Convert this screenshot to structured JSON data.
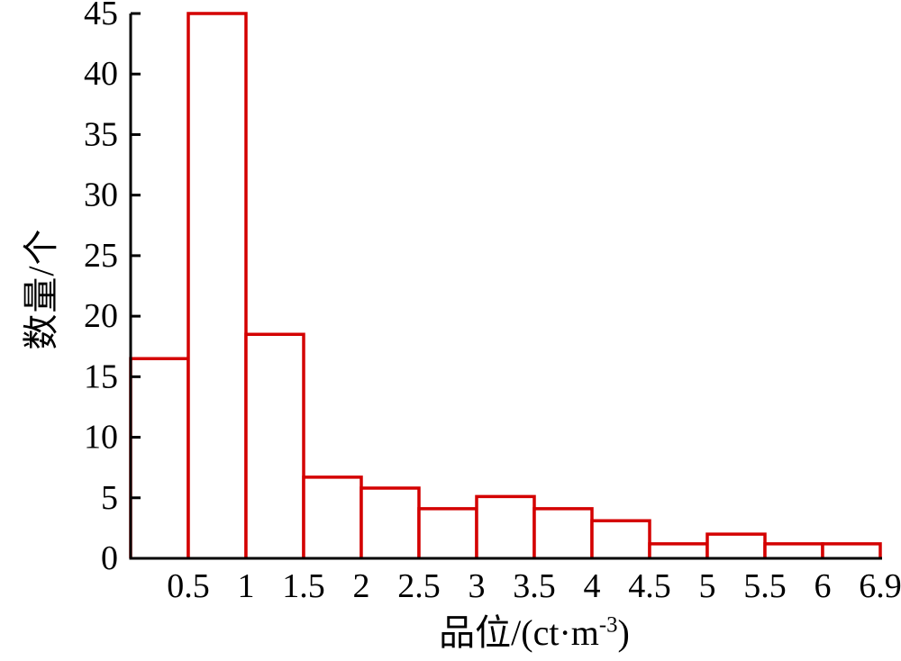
{
  "chart_data": {
    "type": "bar",
    "chart_kind": "histogram",
    "title": "",
    "xlabel": {
      "full": "品位/(ct·m⁻³)",
      "prefix": "品位/(ct·m",
      "superscript": "-3",
      "suffix": ")"
    },
    "ylabel": "数量/个",
    "bin_edges": [
      0,
      0.5,
      1,
      1.5,
      2,
      2.5,
      3,
      3.5,
      4,
      4.5,
      5,
      5.5,
      6,
      6.9
    ],
    "x_tick_labels": [
      "0.5",
      "1",
      "1.5",
      "2",
      "2.5",
      "3",
      "3.5",
      "4",
      "4.5",
      "5",
      "5.5",
      "6",
      "6.9"
    ],
    "values": [
      16.5,
      45,
      18.5,
      6.7,
      5.8,
      4.1,
      5.1,
      4.1,
      3.1,
      1.2,
      2.0,
      1.2,
      1.2
    ],
    "y_ticks": [
      0,
      5,
      10,
      15,
      20,
      25,
      30,
      35,
      40,
      45
    ],
    "ylim": [
      0,
      45
    ],
    "grid": false,
    "legend": null,
    "colors": {
      "bar_stroke": "#d40000",
      "bar_fill": "#ffffff",
      "axis": "#000000",
      "text": "#000000"
    }
  }
}
